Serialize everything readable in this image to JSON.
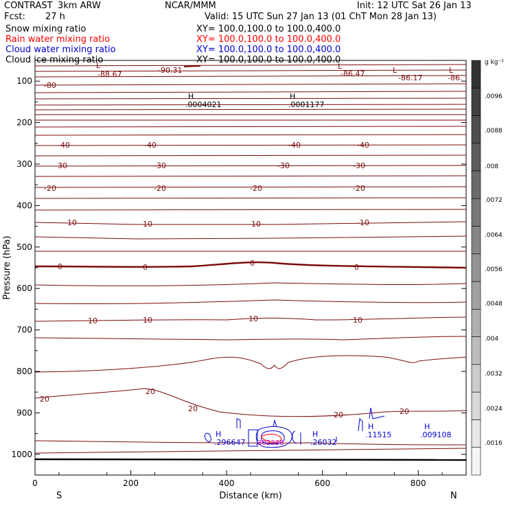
{
  "header": {
    "project": "CONTRAST",
    "model": "3km ARW",
    "org": "NCAR/MMM",
    "init": "Init: 12 UTC Sat 26 Jan 13",
    "fcst_label": "Fcst:",
    "fcst_value": "27 h",
    "valid": "Valid: 15 UTC Sun 27 Jan 13 (01 ChT Mon 28 Jan 13)"
  },
  "fields": [
    {
      "name": "Snow mixing ratio",
      "xy": "XY= 100.0,100.0 to 100.0,400.0",
      "color": "#000000"
    },
    {
      "name": "Rain water mixing ratio",
      "xy": "XY= 100.0,100.0 to 100.0,400.0",
      "color": "#ff0000"
    },
    {
      "name": "Cloud water mixing ratio",
      "xy": "XY= 100.0,100.0 to 100.0,400.0",
      "color": "#0000cc"
    },
    {
      "name": "Cloud ice mixing ratio",
      "xy": "XY= 100.0,100.0 to 100.0,400.0",
      "color": "#000000"
    }
  ],
  "chart_data": {
    "type": "contour",
    "xlabel": "Distance (km)",
    "ylabel": "Pressure (hPa)",
    "xlim": [
      0,
      900
    ],
    "ylim": [
      1050,
      50
    ],
    "x_ticks": [
      "0",
      "200",
      "400",
      "600",
      "800"
    ],
    "y_ticks": [
      "100",
      "200",
      "300",
      "400",
      "500",
      "600",
      "700",
      "800",
      "900",
      "1000"
    ],
    "endpoint_labels": {
      "left": "S",
      "right": "N"
    },
    "colorbar": {
      "unit": "g kg⁻¹",
      "ticks": [
        ".0096",
        ".0088",
        ".008",
        ".0072",
        ".0064",
        ".0056",
        ".0048",
        ".004",
        ".0032",
        ".0024",
        ".0016"
      ]
    },
    "temperature_labels": [
      "-88.67",
      "-90.31",
      "-86.47",
      "-86.17",
      "-86.",
      "-80",
      "-40",
      "-30",
      "-20",
      "-10",
      "0",
      "10",
      "20"
    ],
    "max_labels": [
      {
        "mark": "H",
        "value": ".0004021",
        "color": "#000000"
      },
      {
        "mark": "H",
        "value": ".0001177",
        "color": "#000000"
      },
      {
        "mark": "H",
        "value": ".296647",
        "color": "#0000cc"
      },
      {
        "mark": "H",
        "value": ".26032",
        "color": "#0000cc"
      },
      {
        "mark": "H",
        "value": ".11515",
        "color": "#0000cc"
      },
      {
        "mark": "H",
        "value": ".009108",
        "color": "#0000cc"
      },
      {
        "mark": "",
        "value": ".302338",
        "color": "#cc00cc"
      }
    ],
    "min_marks": [
      "L",
      "L",
      "L",
      "L"
    ]
  }
}
